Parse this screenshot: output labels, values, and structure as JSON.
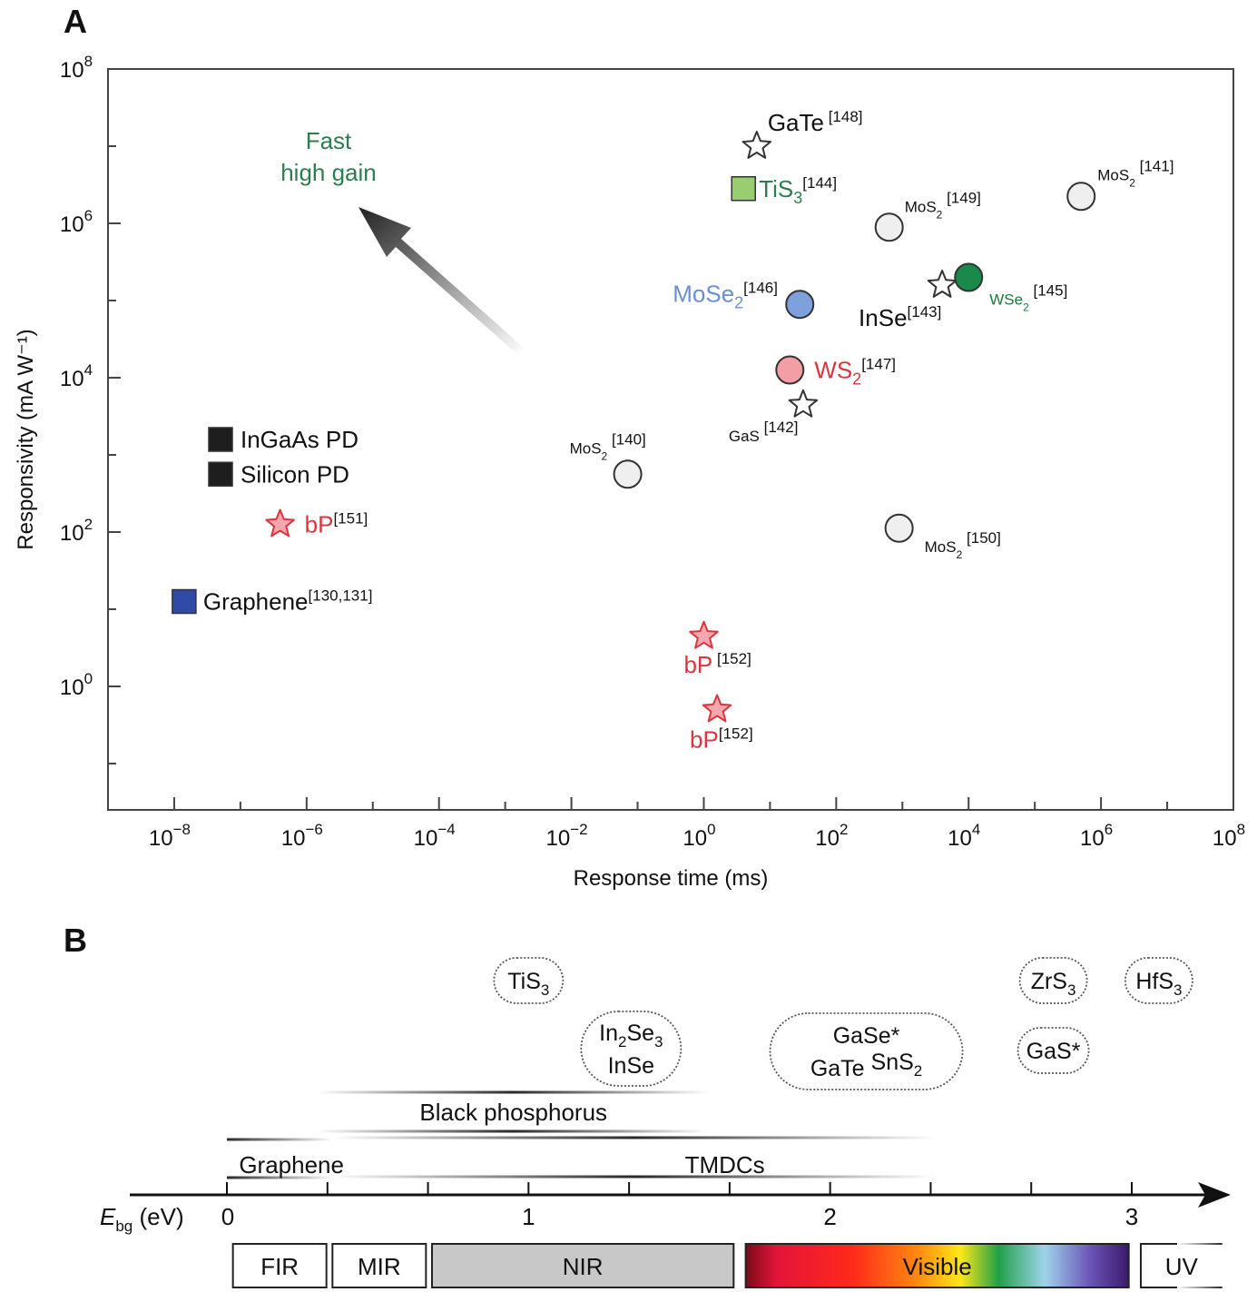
{
  "panel_a": {
    "letter": "A",
    "chart_data": {
      "type": "scatter",
      "xscale": "log10",
      "yscale": "log10",
      "xlim_exp": [
        -9,
        8
      ],
      "ylim_exp": [
        -1.6,
        8
      ],
      "xlabel": "Response time (ms)",
      "ylabel": "Responsivity (mA W⁻¹)",
      "xticks": [
        {
          "exp": -8,
          "base": "10",
          "sup": "−8"
        },
        {
          "exp": -6,
          "base": "10",
          "sup": "−6"
        },
        {
          "exp": -4,
          "base": "10",
          "sup": "−4"
        },
        {
          "exp": -2,
          "base": "10",
          "sup": "−2"
        },
        {
          "exp": 0,
          "base": "10",
          "sup": "0"
        },
        {
          "exp": 2,
          "base": "10",
          "sup": "2"
        },
        {
          "exp": 4,
          "base": "10",
          "sup": "4"
        },
        {
          "exp": 6,
          "base": "10",
          "sup": "6"
        },
        {
          "exp": 8,
          "base": "10",
          "sup": "8"
        }
      ],
      "yticks": [
        {
          "exp": 0,
          "base": "10",
          "sup": "0"
        },
        {
          "exp": 2,
          "base": "10",
          "sup": "2"
        },
        {
          "exp": 4,
          "base": "10",
          "sup": "4"
        },
        {
          "exp": 6,
          "base": "10",
          "sup": "6"
        },
        {
          "exp": 8,
          "base": "10",
          "sup": "8"
        }
      ],
      "annotation": {
        "line1": "Fast",
        "line2": "high gain",
        "color": "#2e7d4f"
      },
      "points": [
        {
          "id": "gate-148",
          "material": "GaTe",
          "ref": "[148]",
          "marker": "star",
          "fill": "#ffffff",
          "color": "#111111",
          "x_exp": 0.8,
          "y_exp": 7.0
        },
        {
          "id": "tis3-144",
          "material": "TiS",
          "sub": "3",
          "ref": "[144]",
          "marker": "square",
          "fill": "#9acd6e",
          "color": "#2e7d4f",
          "x_exp": 0.6,
          "y_exp": 6.45
        },
        {
          "id": "mos2-149",
          "material": "MoS",
          "sub": "2",
          "ref": "[149]",
          "marker": "circle",
          "fill": "#efefef",
          "color": "#111111",
          "x_exp": 2.8,
          "y_exp": 5.95
        },
        {
          "id": "mos2-141",
          "material": "MoS",
          "sub": "2",
          "ref": "[141]",
          "marker": "circle",
          "fill": "#efefef",
          "color": "#111111",
          "x_exp": 5.7,
          "y_exp": 6.35
        },
        {
          "id": "wse2-145",
          "material": "WSe",
          "sub": "2",
          "ref": "[145]",
          "marker": "circle",
          "fill": "#1a8a4a",
          "color": "#1a7a3e",
          "x_exp": 4.0,
          "y_exp": 5.3
        },
        {
          "id": "inse-143",
          "material": "InSe",
          "ref": "[143]",
          "marker": "star",
          "fill": "#ffffff",
          "color": "#111111",
          "x_exp": 3.6,
          "y_exp": 5.2
        },
        {
          "id": "mose2-146",
          "material": "MoSe",
          "sub": "2",
          "ref": "[146]",
          "marker": "circle",
          "fill": "#7ea0dc",
          "color": "#6b8fd0",
          "x_exp": 1.45,
          "y_exp": 4.95
        },
        {
          "id": "ws2-147",
          "material": "WS",
          "sub": "2",
          "ref": "[147]",
          "marker": "circle",
          "fill": "#f29ea4",
          "color": "#d9363e",
          "x_exp": 1.3,
          "y_exp": 4.1
        },
        {
          "id": "gas-142",
          "material": "GaS",
          "ref": "[142]",
          "marker": "star",
          "fill": "#ffffff",
          "color": "#111111",
          "x_exp": 1.5,
          "y_exp": 3.65
        },
        {
          "id": "mos2-140",
          "material": "MoS",
          "sub": "2",
          "ref": "[140]",
          "marker": "circle",
          "fill": "#efefef",
          "color": "#111111",
          "x_exp": -1.15,
          "y_exp": 2.75
        },
        {
          "id": "mos2-150",
          "material": "MoS",
          "sub": "2",
          "ref": "[150]",
          "marker": "circle",
          "fill": "#efefef",
          "color": "#111111",
          "x_exp": 2.95,
          "y_exp": 2.05
        },
        {
          "id": "ingaas-pd",
          "material": "InGaAs PD",
          "ref": "",
          "marker": "square",
          "fill": "#1e1e1e",
          "color": "#111111",
          "x_exp": -7.3,
          "y_exp": 3.2
        },
        {
          "id": "silicon-pd",
          "material": "Silicon PD",
          "ref": "",
          "marker": "square",
          "fill": "#1e1e1e",
          "color": "#111111",
          "x_exp": -7.3,
          "y_exp": 2.75
        },
        {
          "id": "bp-151",
          "material": "bP",
          "ref": "[151]",
          "marker": "star",
          "fill": "#f6a6ad",
          "color": "#d9363e",
          "x_exp": -6.4,
          "y_exp": 2.1
        },
        {
          "id": "graphene-130",
          "material": "Graphene",
          "ref": "[130,131]",
          "marker": "square",
          "fill": "#2f4aa8",
          "color": "#111111",
          "x_exp": -7.85,
          "y_exp": 1.1
        },
        {
          "id": "bp-152a",
          "material": "bP",
          "ref": "[152]",
          "marker": "star",
          "fill": "#f6a6ad",
          "color": "#d9363e",
          "x_exp": 0.0,
          "y_exp": 0.65
        },
        {
          "id": "bp-152b",
          "material": "bP",
          "ref": "[152]",
          "marker": "star",
          "fill": "#f6a6ad",
          "color": "#d9363e",
          "x_exp": 0.2,
          "y_exp": -0.3
        }
      ]
    }
  },
  "panel_b": {
    "letter": "B",
    "axis": {
      "label_main": "E",
      "label_sub": "bg",
      "label_unit": " (eV)",
      "ticks": [
        "0",
        "1",
        "2",
        "3"
      ],
      "range_ev": [
        0,
        3.3
      ]
    },
    "materials": [
      {
        "id": "tis3",
        "lines": [
          [
            "TiS",
            "3"
          ]
        ],
        "ev": 1.0
      },
      {
        "id": "in2se3-inse",
        "lines": [
          [
            "In",
            "2",
            "Se",
            "3"
          ],
          [
            "InSe"
          ]
        ],
        "ev": 1.34
      },
      {
        "id": "gase-gate-sns2",
        "lines": [
          [
            "GaSe*"
          ],
          [
            "GaTe",
            "",
            "   SnS",
            "2"
          ]
        ],
        "ev": 2.12
      },
      {
        "id": "zrs3",
        "lines": [
          [
            "ZrS",
            "3"
          ]
        ],
        "ev": 2.74
      },
      {
        "id": "hfs3",
        "lines": [
          [
            "HfS",
            "3"
          ]
        ],
        "ev": 3.09
      },
      {
        "id": "gas",
        "lines": [
          [
            "GaS*"
          ]
        ],
        "ev": 2.74
      }
    ],
    "ranges": [
      {
        "label": "Black phosphorus",
        "ev_from": 0.3,
        "ev_to": 1.6
      },
      {
        "label": "Graphene",
        "ev_from": 0.0,
        "ev_to": 0.35
      },
      {
        "label": "TMDCs",
        "ev_from": 0.35,
        "ev_to": 2.35
      }
    ],
    "spectrum": [
      {
        "label": "FIR",
        "fill": "#ffffff",
        "ev_from": 0.02,
        "ev_to": 0.33
      },
      {
        "label": "MIR",
        "fill": "#ffffff",
        "ev_from": 0.35,
        "ev_to": 0.66
      },
      {
        "label": "NIR",
        "fill": "#c8c8c8",
        "ev_from": 0.68,
        "ev_to": 1.68
      },
      {
        "label": "Visible",
        "fill": "spectrum",
        "ev_from": 1.72,
        "ev_to": 2.99
      },
      {
        "label": "UV",
        "fill": "fade",
        "ev_from": 3.03,
        "ev_to": 3.3
      }
    ]
  }
}
